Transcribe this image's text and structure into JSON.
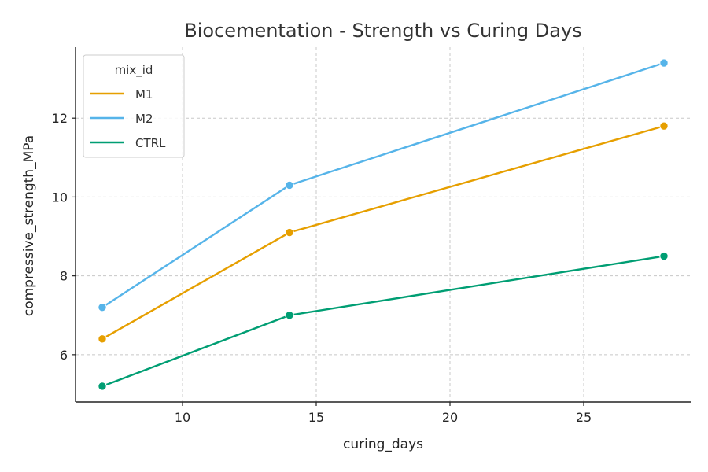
{
  "chart_data": {
    "type": "line",
    "title": "Biocementation - Strength vs Curing Days",
    "xlabel": "curing_days",
    "ylabel": "compressive_strength_MPa",
    "x": [
      7,
      14,
      28
    ],
    "xlim": [
      6,
      29
    ],
    "ylim": [
      4.8,
      13.8
    ],
    "xticks": [
      10,
      15,
      20,
      25
    ],
    "yticks": [
      6,
      8,
      10,
      12
    ],
    "grid": true,
    "legend": {
      "title": "mix_id",
      "placement": "top-left"
    },
    "series": [
      {
        "name": "M1",
        "values": [
          6.4,
          9.1,
          11.8
        ],
        "color": "#e69f00"
      },
      {
        "name": "M2",
        "values": [
          7.2,
          10.3,
          13.4
        ],
        "color": "#56b4e9"
      },
      {
        "name": "CTRL",
        "values": [
          5.2,
          7.0,
          8.5
        ],
        "color": "#009e73"
      }
    ]
  }
}
